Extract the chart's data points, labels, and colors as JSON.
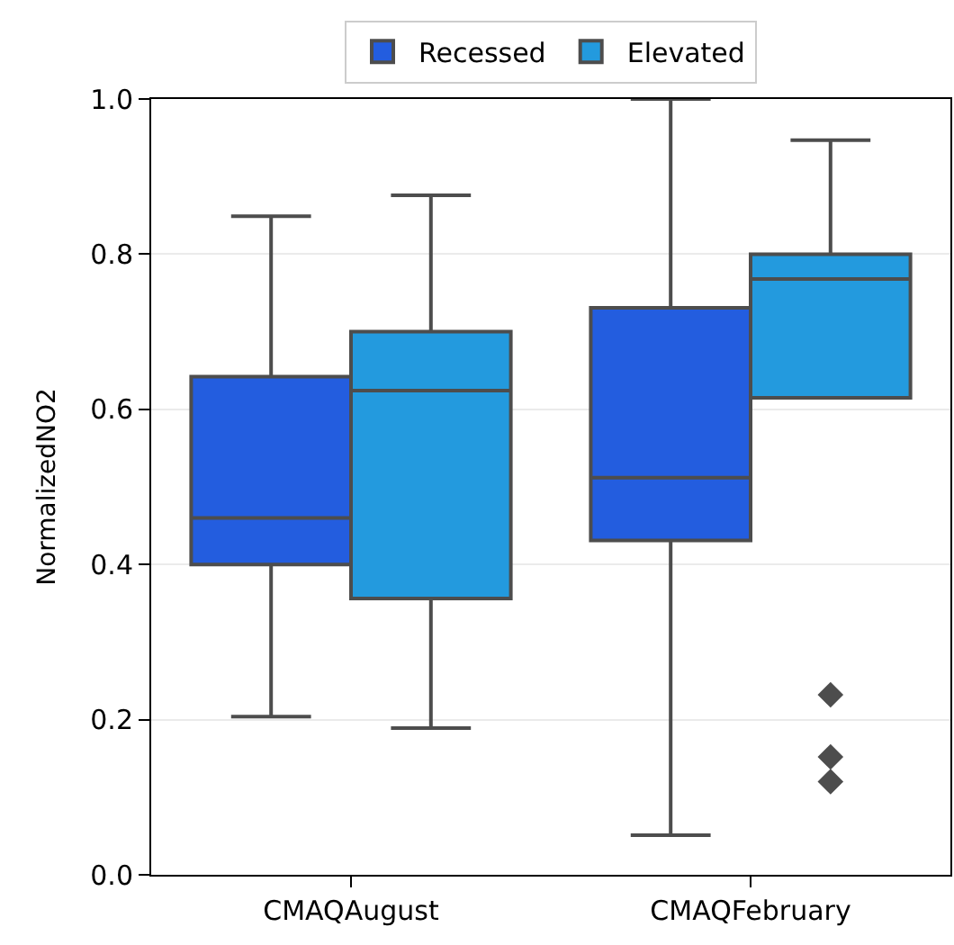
{
  "chart_data": {
    "type": "box",
    "categories": [
      "CMAQAugust",
      "CMAQFebruary"
    ],
    "ylabel": "NormalizedNO2",
    "ylim": [
      0,
      1.0
    ],
    "yticks": [
      {
        "value": 0,
        "label": "0.0"
      },
      0.2,
      0.4,
      0.6,
      0.8,
      {
        "value": 1.0,
        "label": "1.0"
      }
    ],
    "grid": "y",
    "legend": "top",
    "marker": "diamond",
    "series": [
      {
        "name": "Recessed",
        "color": "#235ddf",
        "boxes": [
          {
            "low": 0.204,
            "q1": 0.4,
            "median": 0.46,
            "q3": 0.642,
            "high": 0.849
          },
          {
            "low": 0.051,
            "q1": 0.431,
            "median": 0.512,
            "q3": 0.731,
            "high": 1.0
          }
        ]
      },
      {
        "name": "Elevated",
        "color": "#239ade",
        "boxes": [
          {
            "low": 0.189,
            "q1": 0.356,
            "median": 0.624,
            "q3": 0.7,
            "high": 0.876
          },
          {
            "low": 0.615,
            "q1": 0.615,
            "median": 0.768,
            "q3": 0.8,
            "high": 0.947,
            "outliers": [
              0.232,
              0.152,
              0.12
            ]
          }
        ]
      }
    ]
  }
}
